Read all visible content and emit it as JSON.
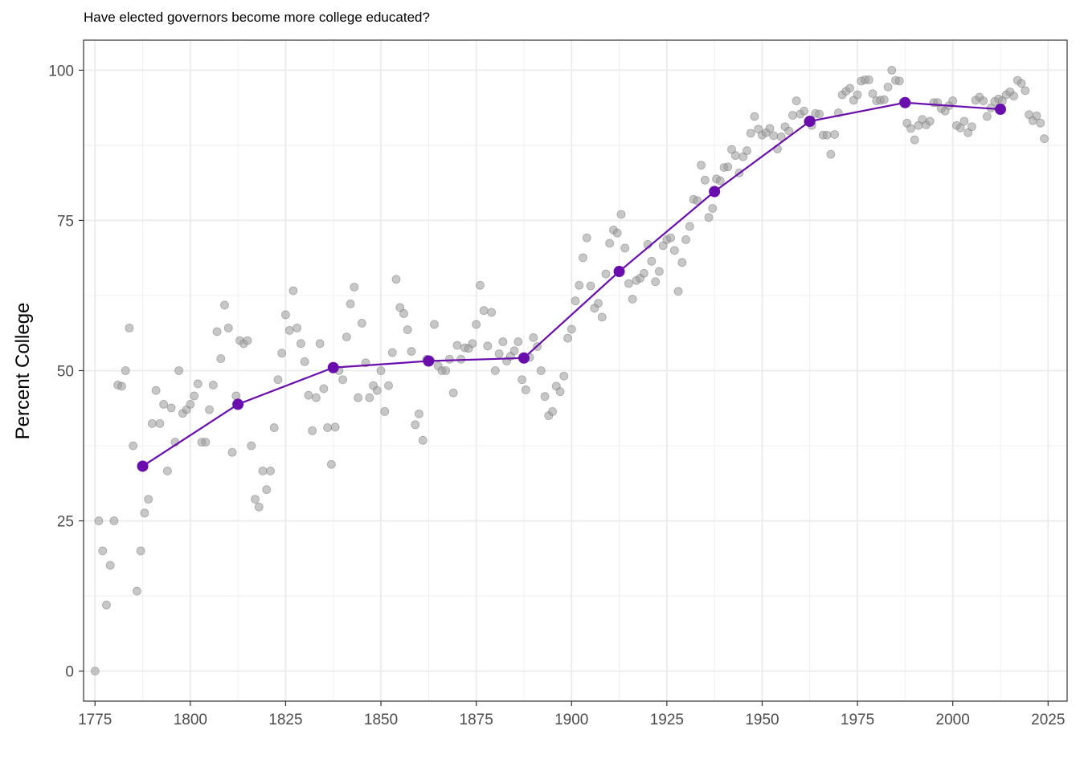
{
  "chart_data": {
    "type": "scatter",
    "title": "Have elected governors become more college educated?",
    "xlabel": "",
    "ylabel": "Percent College",
    "xlim": [
      1772,
      2030
    ],
    "ylim": [
      -5,
      105
    ],
    "x_ticks": [
      1775,
      1800,
      1825,
      1850,
      1875,
      1900,
      1925,
      1950,
      1975,
      2000,
      2025
    ],
    "y_ticks": [
      0,
      25,
      50,
      75,
      100
    ],
    "grid": true,
    "legend": "none",
    "colors": {
      "points": "#999999",
      "trend": "#6a0dad",
      "grid": "#ebebeb",
      "border": "#333333"
    },
    "series": [
      {
        "type": "scatter",
        "points": [
          [
            1775,
            0
          ],
          [
            1776,
            25
          ],
          [
            1777,
            20
          ],
          [
            1778,
            11
          ],
          [
            1779,
            17.6
          ],
          [
            1780,
            25
          ],
          [
            1781,
            47.6
          ],
          [
            1782,
            47.4
          ],
          [
            1783,
            50
          ],
          [
            1784,
            57.1
          ],
          [
            1785,
            37.5
          ],
          [
            1786,
            13.3
          ],
          [
            1787,
            20
          ],
          [
            1788,
            26.3
          ],
          [
            1789,
            28.6
          ],
          [
            1790,
            41.2
          ],
          [
            1791,
            46.7
          ],
          [
            1792,
            41.2
          ],
          [
            1793,
            44.4
          ],
          [
            1794,
            33.3
          ],
          [
            1795,
            43.8
          ],
          [
            1796,
            38.1
          ],
          [
            1797,
            50
          ],
          [
            1798,
            42.9
          ],
          [
            1799,
            43.5
          ],
          [
            1800,
            44.4
          ],
          [
            1801,
            45.8
          ],
          [
            1802,
            47.8
          ],
          [
            1803,
            38.1
          ],
          [
            1804,
            38.1
          ],
          [
            1805,
            43.5
          ],
          [
            1806,
            47.6
          ],
          [
            1807,
            56.5
          ],
          [
            1808,
            52
          ],
          [
            1809,
            60.9
          ],
          [
            1810,
            57.1
          ],
          [
            1811,
            36.4
          ],
          [
            1812,
            45.8
          ],
          [
            1813,
            55
          ],
          [
            1814,
            54.5
          ],
          [
            1815,
            55
          ],
          [
            1816,
            37.5
          ],
          [
            1817,
            28.6
          ],
          [
            1818,
            27.3
          ],
          [
            1819,
            33.3
          ],
          [
            1820,
            30.2
          ],
          [
            1821,
            33.3
          ],
          [
            1822,
            40.5
          ],
          [
            1823,
            48.5
          ],
          [
            1824,
            52.9
          ],
          [
            1825,
            59.3
          ],
          [
            1826,
            56.7
          ],
          [
            1827,
            63.3
          ],
          [
            1828,
            57.1
          ],
          [
            1829,
            54.5
          ],
          [
            1830,
            51.5
          ],
          [
            1831,
            45.9
          ],
          [
            1832,
            40
          ],
          [
            1833,
            45.5
          ],
          [
            1834,
            54.5
          ],
          [
            1835,
            47
          ],
          [
            1836,
            40.5
          ],
          [
            1837,
            34.4
          ],
          [
            1838,
            40.6
          ],
          [
            1839,
            50
          ],
          [
            1840,
            48.5
          ],
          [
            1841,
            55.6
          ],
          [
            1842,
            61.1
          ],
          [
            1843,
            63.9
          ],
          [
            1844,
            45.5
          ],
          [
            1845,
            57.9
          ],
          [
            1846,
            51.3
          ],
          [
            1847,
            45.5
          ],
          [
            1848,
            47.5
          ],
          [
            1849,
            46.7
          ],
          [
            1850,
            50
          ],
          [
            1851,
            43.2
          ],
          [
            1852,
            47.5
          ],
          [
            1853,
            53
          ],
          [
            1854,
            65.2
          ],
          [
            1855,
            60.5
          ],
          [
            1856,
            59.5
          ],
          [
            1857,
            56.8
          ],
          [
            1858,
            53.2
          ],
          [
            1859,
            41
          ],
          [
            1860,
            42.8
          ],
          [
            1861,
            38.4
          ],
          [
            1862,
            51.9
          ],
          [
            1863,
            51.7
          ],
          [
            1864,
            57.7
          ],
          [
            1865,
            50.8
          ],
          [
            1866,
            50
          ],
          [
            1867,
            50
          ],
          [
            1868,
            51.9
          ],
          [
            1869,
            46.3
          ],
          [
            1870,
            54.2
          ],
          [
            1871,
            51.9
          ],
          [
            1872,
            53.8
          ],
          [
            1873,
            53.7
          ],
          [
            1874,
            54.5
          ],
          [
            1875,
            57.7
          ],
          [
            1876,
            64.2
          ],
          [
            1877,
            60
          ],
          [
            1878,
            54.1
          ],
          [
            1879,
            59.7
          ],
          [
            1880,
            50
          ],
          [
            1881,
            52.8
          ],
          [
            1882,
            54.8
          ],
          [
            1883,
            51.6
          ],
          [
            1884,
            52.4
          ],
          [
            1885,
            53.3
          ],
          [
            1886,
            54.8
          ],
          [
            1887,
            48.5
          ],
          [
            1888,
            46.8
          ],
          [
            1889,
            52.2
          ],
          [
            1890,
            55.5
          ],
          [
            1891,
            54
          ],
          [
            1892,
            50
          ],
          [
            1893,
            45.7
          ],
          [
            1894,
            42.5
          ],
          [
            1895,
            43.2
          ],
          [
            1896,
            47.4
          ],
          [
            1897,
            46.5
          ],
          [
            1898,
            49.1
          ],
          [
            1899,
            55.4
          ],
          [
            1900,
            56.9
          ],
          [
            1901,
            61.6
          ],
          [
            1902,
            64.2
          ],
          [
            1903,
            68.8
          ],
          [
            1904,
            72.1
          ],
          [
            1905,
            64.1
          ],
          [
            1906,
            60.4
          ],
          [
            1907,
            61.2
          ],
          [
            1908,
            58.9
          ],
          [
            1909,
            66.1
          ],
          [
            1910,
            71.2
          ],
          [
            1911,
            73.4
          ],
          [
            1912,
            72.9
          ],
          [
            1913,
            76
          ],
          [
            1914,
            70.4
          ],
          [
            1915,
            64.5
          ],
          [
            1916,
            61.9
          ],
          [
            1917,
            65
          ],
          [
            1918,
            65.4
          ],
          [
            1919,
            66.2
          ],
          [
            1920,
            71
          ],
          [
            1921,
            68.2
          ],
          [
            1922,
            64.8
          ],
          [
            1923,
            66.5
          ],
          [
            1924,
            70.8
          ],
          [
            1925,
            71.8
          ],
          [
            1926,
            72.1
          ],
          [
            1927,
            70
          ],
          [
            1928,
            63.2
          ],
          [
            1929,
            68
          ],
          [
            1930,
            71.8
          ],
          [
            1931,
            74
          ],
          [
            1932,
            78.5
          ],
          [
            1933,
            78.3
          ],
          [
            1934,
            84.2
          ],
          [
            1935,
            81.7
          ],
          [
            1936,
            75.5
          ],
          [
            1937,
            77
          ],
          [
            1938,
            81.9
          ],
          [
            1939,
            81.6
          ],
          [
            1940,
            83.8
          ],
          [
            1941,
            83.9
          ],
          [
            1942,
            86.8
          ],
          [
            1943,
            85.8
          ],
          [
            1944,
            82.9
          ],
          [
            1945,
            85.6
          ],
          [
            1946,
            86.6
          ],
          [
            1947,
            89.5
          ],
          [
            1948,
            92.3
          ],
          [
            1949,
            90.2
          ],
          [
            1950,
            89.2
          ],
          [
            1951,
            89.6
          ],
          [
            1952,
            90.3
          ],
          [
            1953,
            89.1
          ],
          [
            1954,
            86.9
          ],
          [
            1955,
            88.9
          ],
          [
            1956,
            90.6
          ],
          [
            1957,
            89.9
          ],
          [
            1958,
            92.5
          ],
          [
            1959,
            94.9
          ],
          [
            1960,
            92.7
          ],
          [
            1961,
            93.2
          ],
          [
            1962,
            91.4
          ],
          [
            1963,
            90.8
          ],
          [
            1964,
            92.8
          ],
          [
            1965,
            92.7
          ],
          [
            1966,
            89.2
          ],
          [
            1967,
            89.2
          ],
          [
            1968,
            86
          ],
          [
            1969,
            89.3
          ],
          [
            1970,
            92.9
          ],
          [
            1971,
            95.9
          ],
          [
            1972,
            96.5
          ],
          [
            1973,
            97
          ],
          [
            1974,
            95
          ],
          [
            1975,
            95.9
          ],
          [
            1976,
            98.2
          ],
          [
            1977,
            98.4
          ],
          [
            1978,
            98.4
          ],
          [
            1979,
            96.1
          ],
          [
            1980,
            94.9
          ],
          [
            1981,
            95
          ],
          [
            1982,
            95.1
          ],
          [
            1983,
            97.2
          ],
          [
            1984,
            100
          ],
          [
            1985,
            98.3
          ],
          [
            1986,
            98.2
          ],
          [
            1987,
            94.7
          ],
          [
            1988,
            91.2
          ],
          [
            1989,
            90.3
          ],
          [
            1990,
            88.4
          ],
          [
            1991,
            90.8
          ],
          [
            1992,
            91.8
          ],
          [
            1993,
            90.9
          ],
          [
            1994,
            91.5
          ],
          [
            1995,
            94.6
          ],
          [
            1996,
            94.6
          ],
          [
            1997,
            93.6
          ],
          [
            1998,
            93.2
          ],
          [
            1999,
            94.1
          ],
          [
            2000,
            94.9
          ],
          [
            2001,
            90.8
          ],
          [
            2002,
            90.4
          ],
          [
            2003,
            91.5
          ],
          [
            2004,
            89.6
          ],
          [
            2005,
            90.6
          ],
          [
            2006,
            95
          ],
          [
            2007,
            95.5
          ],
          [
            2008,
            94.9
          ],
          [
            2009,
            92.3
          ],
          [
            2010,
            93.7
          ],
          [
            2011,
            94.8
          ],
          [
            2012,
            95.2
          ],
          [
            2013,
            94.9
          ],
          [
            2014,
            95.9
          ],
          [
            2015,
            96.4
          ],
          [
            2016,
            95.7
          ],
          [
            2017,
            98.3
          ],
          [
            2018,
            97.8
          ],
          [
            2019,
            96.6
          ],
          [
            2020,
            92.6
          ],
          [
            2021,
            91.6
          ],
          [
            2022,
            92.4
          ],
          [
            2023,
            91.2
          ],
          [
            2024,
            88.6
          ]
        ]
      },
      {
        "type": "line",
        "x": [
          1787.5,
          1812.5,
          1837.5,
          1862.5,
          1887.5,
          1912.5,
          1937.5,
          1962.5,
          1987.5,
          2012.5
        ],
        "y": [
          34.1,
          44.4,
          50.5,
          51.6,
          52.1,
          66.5,
          79.8,
          91.5,
          94.6,
          93.5
        ]
      }
    ]
  }
}
